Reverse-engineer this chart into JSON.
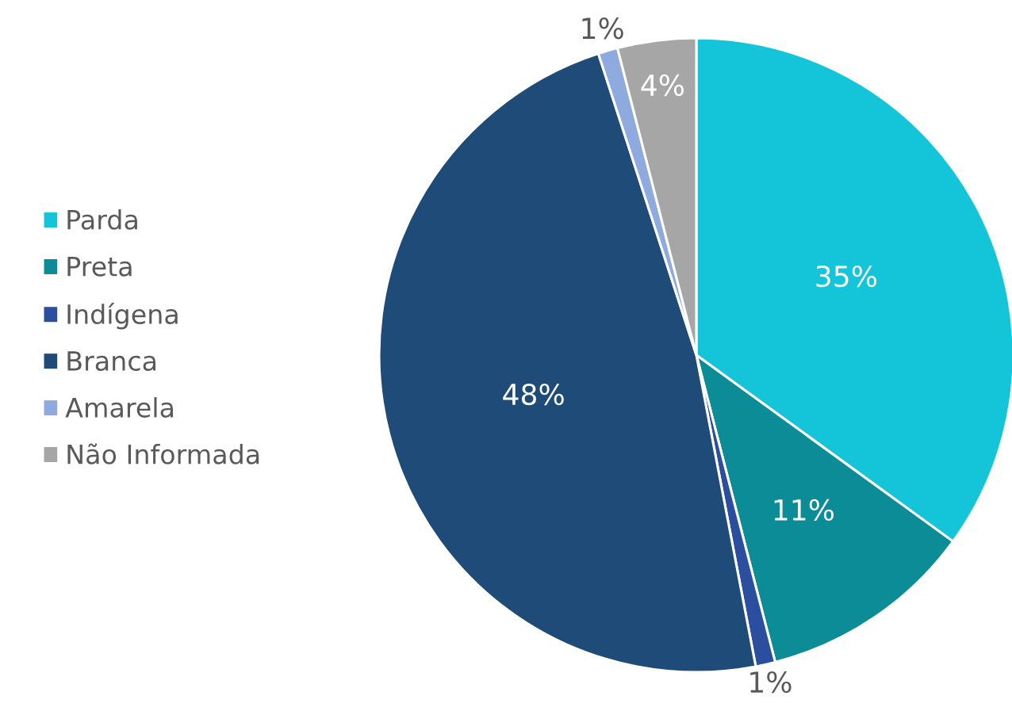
{
  "chart_data": {
    "type": "pie",
    "categories": [
      "Parda",
      "Preta",
      "Indígena",
      "Branca",
      "Amarela",
      "Não Informada"
    ],
    "values": [
      35,
      11,
      1,
      48,
      1,
      4
    ],
    "colors": [
      "#14c4d8",
      "#0b8c96",
      "#2b4f9e",
      "#1f4b78",
      "#8eaade",
      "#a6a6a6"
    ],
    "value_labels": [
      "35%",
      "11%",
      "1%",
      "48%",
      "1%",
      "4%"
    ],
    "legend": "left"
  }
}
